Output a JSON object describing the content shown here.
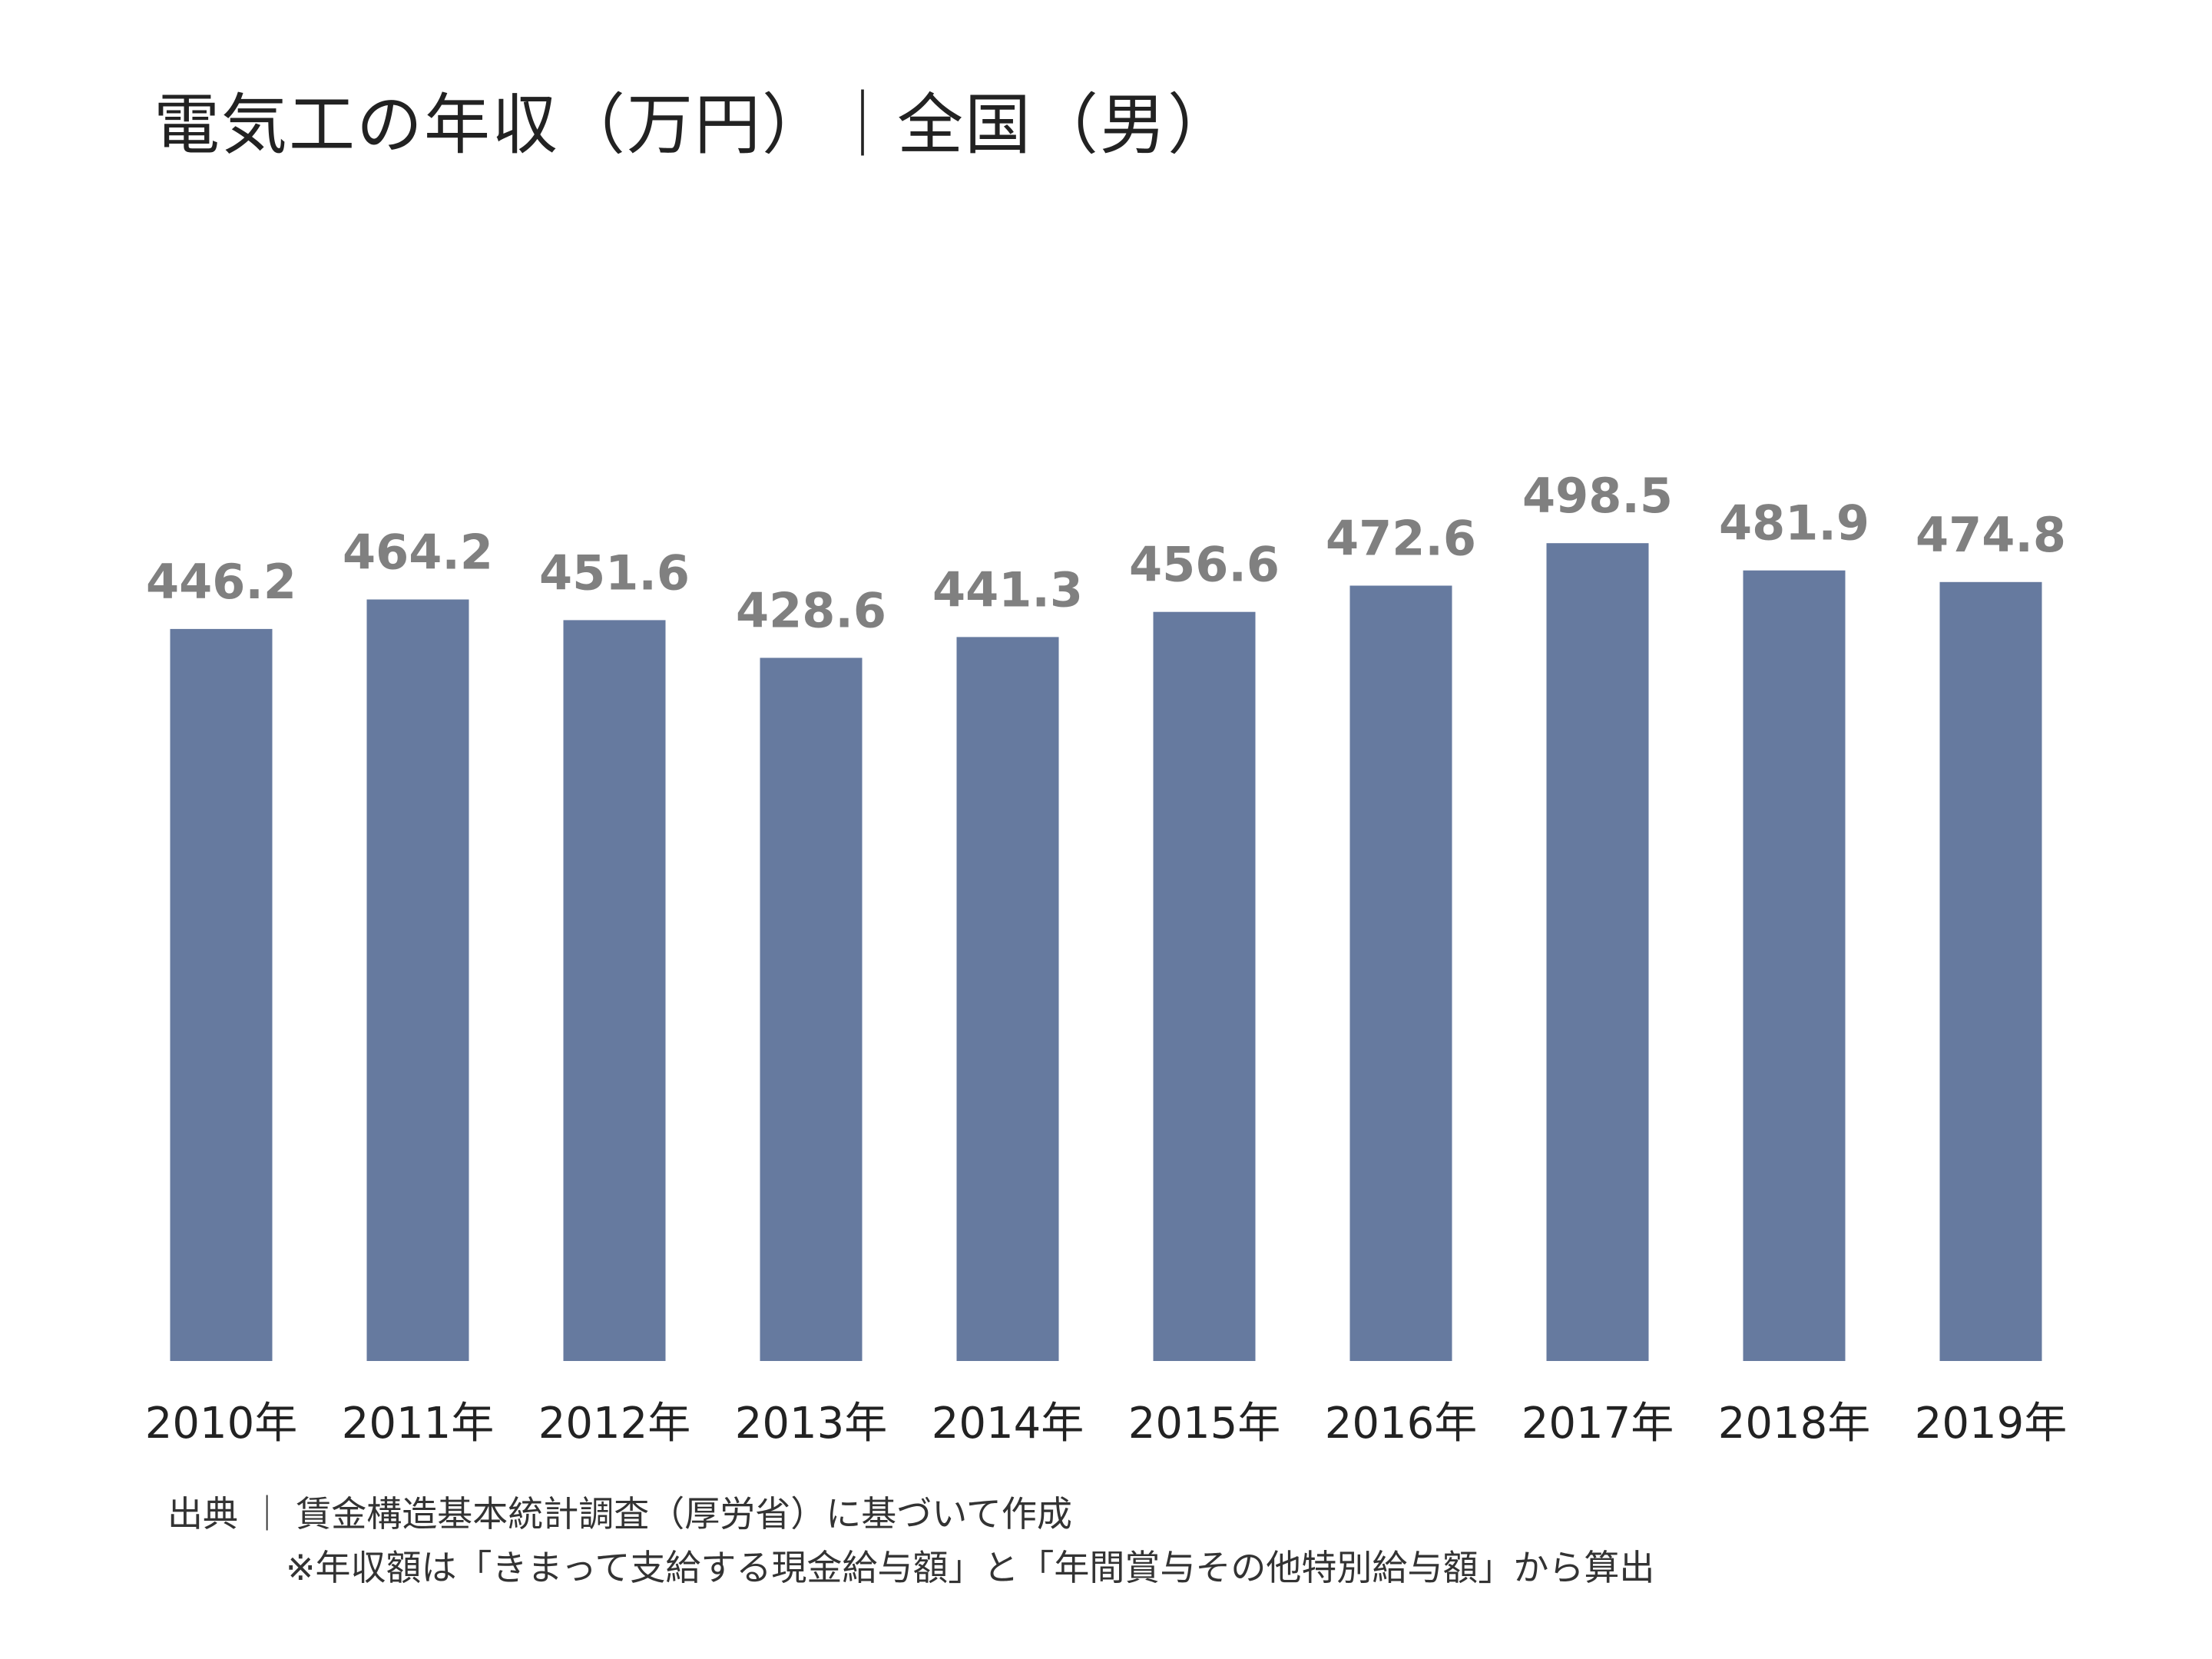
{
  "chart_data": {
    "type": "bar",
    "title": "電気工の年収（万円）｜全国（男）",
    "categories": [
      "2010年",
      "2011年",
      "2012年",
      "2013年",
      "2014年",
      "2015年",
      "2016年",
      "2017年",
      "2018年",
      "2019年"
    ],
    "values": [
      446.2,
      464.2,
      451.6,
      428.6,
      441.3,
      456.6,
      472.6,
      498.5,
      481.9,
      474.8
    ],
    "value_labels": [
      "446.2",
      "464.2",
      "451.6",
      "428.6",
      "441.3",
      "456.6",
      "472.6",
      "498.5",
      "481.9",
      "474.8"
    ],
    "xlabel": "",
    "ylabel": "",
    "ylim": [
      0,
      500
    ],
    "grid": false,
    "legend": "none",
    "bar_color": "#667a9f",
    "value_label_color": "#808080"
  },
  "footnotes": {
    "source": "出典 ｜ 賃金構造基本統計調査（厚労省）に基づいて作成",
    "note": "※年収額は「きまって支給する現金給与額」と「年間賞与その他特別給与額」から算出"
  }
}
